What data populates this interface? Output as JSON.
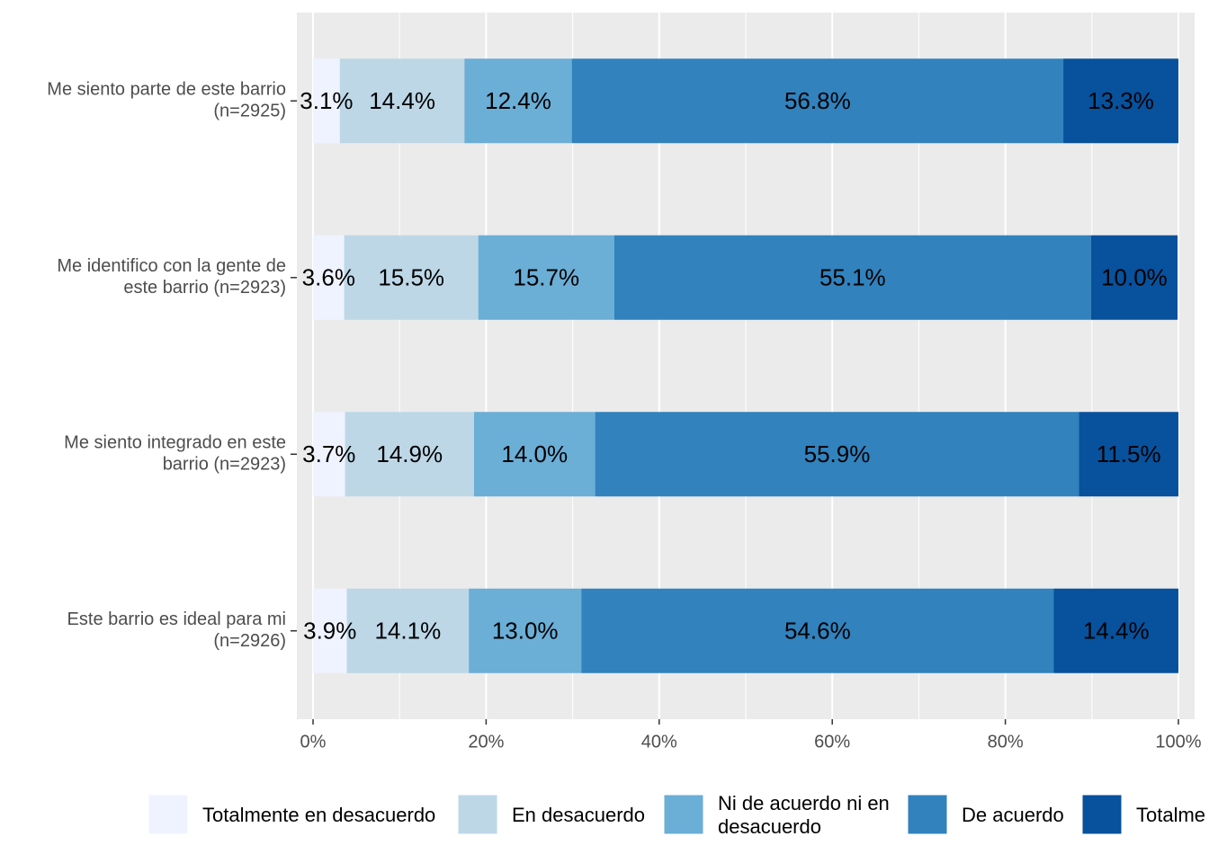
{
  "chart_data": {
    "type": "stacked-barh",
    "categories": [
      "Me siento parte de este barrio\n(n=2925)",
      "Me identifico con la gente de\neste barrio (n=2923)",
      "Me siento integrado en este\nbarrio (n=2923)",
      "Este barrio es ideal para mi\n(n=2926)"
    ],
    "series": [
      {
        "name": "Totalmente en desacuerdo",
        "color": "#eff3ff",
        "values": [
          3.1,
          3.6,
          3.7,
          3.9
        ],
        "value_labels": [
          "3.1%",
          "3.6%",
          "3.7%",
          "3.9%"
        ]
      },
      {
        "name": "En desacuerdo",
        "color": "#bdd7e7",
        "values": [
          14.4,
          15.5,
          14.9,
          14.1
        ],
        "value_labels": [
          "14.4%",
          "15.5%",
          "14.9%",
          "14.1%"
        ]
      },
      {
        "name": "Ni de acuerdo ni en\ndesacuerdo",
        "color": "#6baed6",
        "values": [
          12.4,
          15.7,
          14.0,
          13.0
        ],
        "value_labels": [
          "12.4%",
          "15.7%",
          "14.0%",
          "13.0%"
        ]
      },
      {
        "name": "De acuerdo",
        "color": "#3182bd",
        "values": [
          56.8,
          55.1,
          55.9,
          54.6
        ],
        "value_labels": [
          "56.8%",
          "55.1%",
          "55.9%",
          "54.6%"
        ]
      },
      {
        "name": "Totalme",
        "color": "#08519c",
        "values": [
          13.3,
          10.0,
          11.5,
          14.4
        ],
        "value_labels": [
          "13.3%",
          "10.0%",
          "11.5%",
          "14.4%"
        ]
      }
    ],
    "xlim": [
      0,
      100
    ],
    "xticks": [
      {
        "value": 0,
        "label": "0%"
      },
      {
        "value": 20,
        "label": "20%"
      },
      {
        "value": 40,
        "label": "40%"
      },
      {
        "value": 60,
        "label": "60%"
      },
      {
        "value": 80,
        "label": "80%"
      },
      {
        "value": 100,
        "label": "100%"
      }
    ],
    "grid": true,
    "legend": "bottom"
  }
}
